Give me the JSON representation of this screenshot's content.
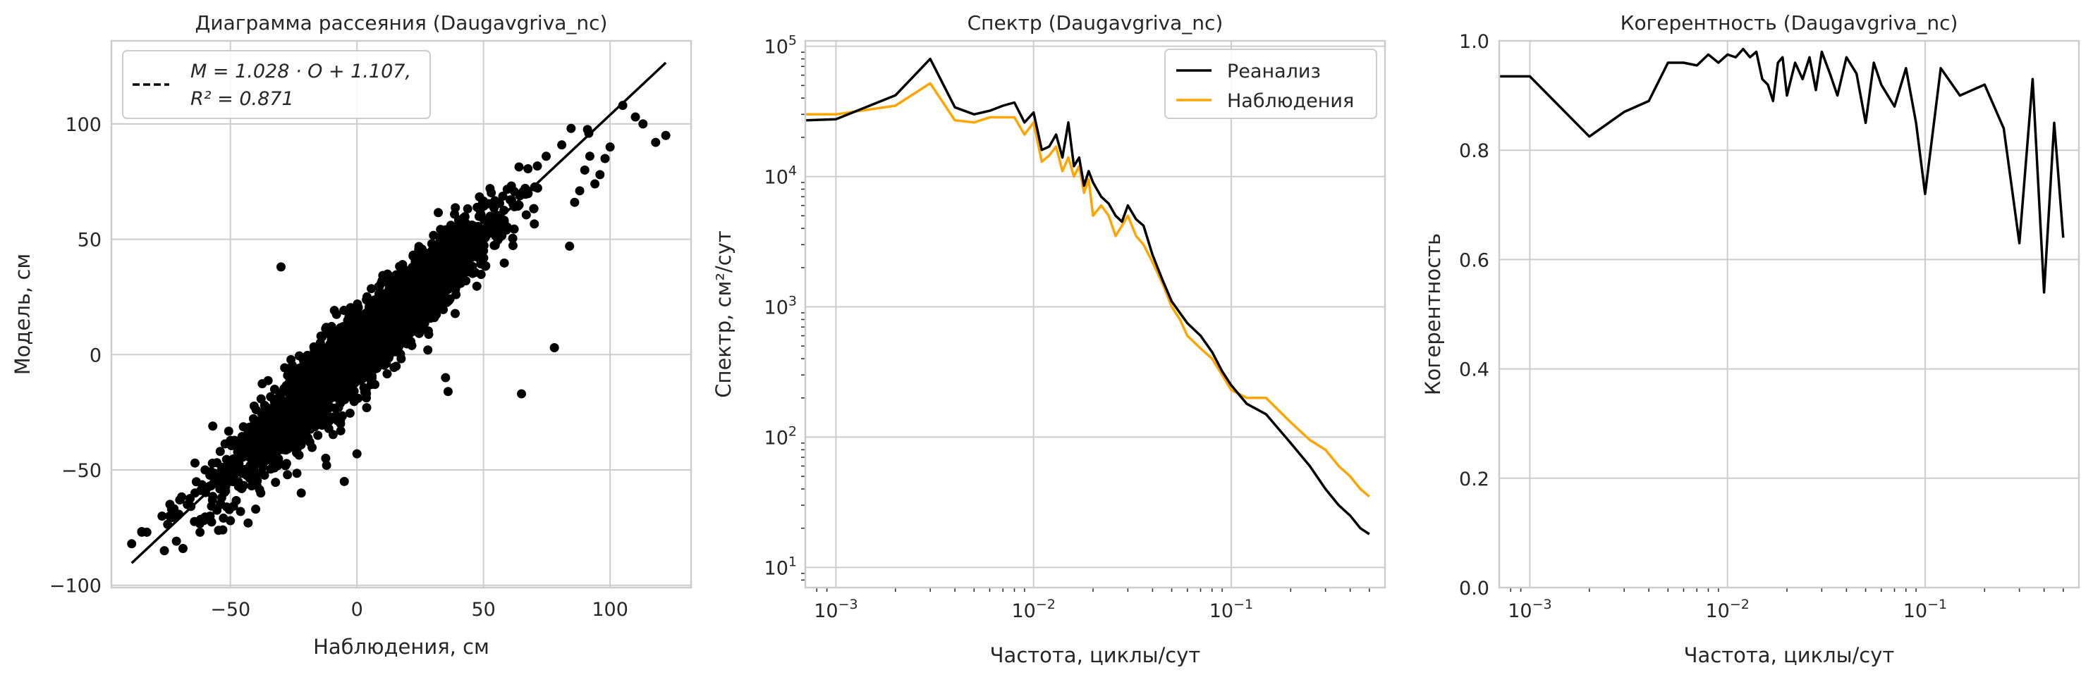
{
  "chart_data": [
    {
      "type": "scatter",
      "title": "Диаграмма рассеяния (Daugavgriva_nc)",
      "xlabel": "Наблюдения, см",
      "ylabel": "Модель, см",
      "xlim": [
        -97,
        132
      ],
      "ylim": [
        -101,
        136
      ],
      "xticks": [
        -50,
        0,
        50,
        100
      ],
      "yticks": [
        -100,
        -50,
        0,
        50,
        100
      ],
      "grid": true,
      "legend_position": "upper-left",
      "legend_lines": [
        "M = 1.028 · O + 1.107,",
        "R² = 0.871"
      ],
      "fit_line": {
        "slope": 1.028,
        "intercept": 1.107,
        "x_range": [
          -89,
          122
        ]
      },
      "scatter_model": {
        "n_points": 3200,
        "slope": 1.028,
        "intercept": 1.107,
        "x_mean": 2,
        "x_std": 25,
        "residual_std": 8.3,
        "x_range": [
          -89,
          122
        ]
      },
      "points": [
        [
          -89,
          -82
        ],
        [
          -85,
          -77
        ],
        [
          -83,
          -77
        ],
        [
          -77,
          -70
        ],
        [
          -74,
          -70
        ],
        [
          -70,
          -63
        ],
        [
          -67,
          -65
        ],
        [
          -64,
          -60
        ],
        [
          -62,
          -77
        ],
        [
          -58,
          -70
        ],
        [
          -53,
          -76
        ],
        [
          -50,
          -72
        ],
        [
          -46,
          -68
        ],
        [
          -43,
          -73
        ],
        [
          -60,
          -50
        ],
        [
          -64,
          -47
        ],
        [
          -40,
          -67
        ],
        [
          -38,
          -60
        ],
        [
          -20,
          -22
        ],
        [
          -35,
          -35
        ],
        [
          -30,
          38
        ],
        [
          -15,
          -30
        ],
        [
          45,
          42
        ],
        [
          50,
          45
        ],
        [
          55,
          54
        ],
        [
          35,
          -10
        ],
        [
          78,
          3
        ],
        [
          28,
          2
        ],
        [
          65,
          -17
        ],
        [
          36,
          -16
        ],
        [
          84,
          47
        ],
        [
          86,
          66
        ],
        [
          88,
          71
        ],
        [
          90,
          80
        ],
        [
          92,
          86
        ],
        [
          94,
          74
        ],
        [
          96,
          78
        ],
        [
          98,
          85
        ],
        [
          100,
          90
        ],
        [
          105,
          108
        ],
        [
          110,
          103
        ],
        [
          113,
          100
        ],
        [
          118,
          92
        ],
        [
          122,
          95
        ],
        [
          -22,
          -60
        ],
        [
          -12,
          -48
        ],
        [
          0,
          -43
        ],
        [
          -5,
          -55
        ]
      ]
    },
    {
      "type": "line",
      "title": "Спектр (Daugavgriva_nc)",
      "xlabel": "Частота, циклы/сут",
      "ylabel": "Спектр, см²/сут",
      "xscale": "log",
      "yscale": "log",
      "xlim": [
        0.0007,
        0.6
      ],
      "ylim": [
        7,
        110000
      ],
      "xticks": [
        {
          "value": 0.001,
          "base": "10",
          "exp": "−3"
        },
        {
          "value": 0.01,
          "base": "10",
          "exp": "−2"
        },
        {
          "value": 0.1,
          "base": "10",
          "exp": "−1"
        }
      ],
      "yticks": [
        {
          "value": 10,
          "base": "10",
          "exp": "1"
        },
        {
          "value": 100,
          "base": "10",
          "exp": "2"
        },
        {
          "value": 1000,
          "base": "10",
          "exp": "3"
        },
        {
          "value": 10000,
          "base": "10",
          "exp": "4"
        },
        {
          "value": 100000,
          "base": "10",
          "exp": "5"
        }
      ],
      "grid": true,
      "legend_position": "upper-right",
      "series": [
        {
          "name": "Реанализ",
          "color": "#000000",
          "x": [
            0.0007,
            0.001,
            0.002,
            0.003,
            0.004,
            0.005,
            0.006,
            0.007,
            0.008,
            0.009,
            0.01,
            0.011,
            0.012,
            0.013,
            0.014,
            0.015,
            0.016,
            0.017,
            0.018,
            0.019,
            0.02,
            0.022,
            0.024,
            0.026,
            0.028,
            0.03,
            0.033,
            0.036,
            0.04,
            0.045,
            0.05,
            0.055,
            0.06,
            0.07,
            0.08,
            0.09,
            0.1,
            0.12,
            0.15,
            0.2,
            0.25,
            0.3,
            0.35,
            0.4,
            0.45,
            0.5
          ],
          "y": [
            27000,
            27500,
            42000,
            80000,
            34000,
            30000,
            32000,
            35000,
            37000,
            26000,
            31000,
            16000,
            17000,
            21000,
            14000,
            26000,
            12000,
            14000,
            8500,
            11000,
            9000,
            7000,
            6200,
            5000,
            4500,
            6000,
            4700,
            4200,
            2500,
            1600,
            1100,
            900,
            750,
            600,
            450,
            320,
            250,
            180,
            150,
            90,
            60,
            40,
            30,
            25,
            20,
            18
          ]
        },
        {
          "name": "Наблюдения",
          "color": "#FFA500",
          "x": [
            0.0007,
            0.001,
            0.002,
            0.003,
            0.004,
            0.005,
            0.006,
            0.007,
            0.008,
            0.009,
            0.01,
            0.011,
            0.012,
            0.013,
            0.014,
            0.015,
            0.016,
            0.017,
            0.018,
            0.019,
            0.02,
            0.022,
            0.024,
            0.026,
            0.028,
            0.03,
            0.033,
            0.036,
            0.04,
            0.045,
            0.05,
            0.055,
            0.06,
            0.07,
            0.08,
            0.09,
            0.1,
            0.12,
            0.15,
            0.2,
            0.25,
            0.3,
            0.35,
            0.4,
            0.45,
            0.5
          ],
          "y": [
            30000,
            30000,
            35000,
            52000,
            27000,
            26000,
            28500,
            28500,
            28500,
            21000,
            26000,
            13000,
            14500,
            17000,
            11000,
            14000,
            10000,
            12000,
            7500,
            9500,
            5000,
            6000,
            5000,
            3500,
            4200,
            5000,
            3500,
            3000,
            2200,
            1500,
            1000,
            800,
            600,
            480,
            400,
            300,
            230,
            200,
            200,
            130,
            95,
            80,
            60,
            50,
            40,
            35
          ]
        }
      ]
    },
    {
      "type": "line",
      "title": "Когерентность (Daugavgriva_nc)",
      "xlabel": "Частота, циклы/сут",
      "ylabel": "Когерентность",
      "xscale": "log",
      "xlim": [
        0.0007,
        0.6
      ],
      "ylim": [
        0.0,
        1.0
      ],
      "xticks": [
        {
          "value": 0.001,
          "base": "10",
          "exp": "−3"
        },
        {
          "value": 0.01,
          "base": "10",
          "exp": "−2"
        },
        {
          "value": 0.1,
          "base": "10",
          "exp": "−1"
        }
      ],
      "yticks": [
        0.0,
        0.2,
        0.4,
        0.6,
        0.8,
        1.0
      ],
      "grid": true,
      "series": [
        {
          "name": "",
          "color": "#000000",
          "x": [
            0.0007,
            0.001,
            0.002,
            0.003,
            0.004,
            0.005,
            0.006,
            0.007,
            0.008,
            0.009,
            0.01,
            0.011,
            0.012,
            0.013,
            0.014,
            0.015,
            0.016,
            0.017,
            0.018,
            0.019,
            0.02,
            0.022,
            0.024,
            0.026,
            0.028,
            0.03,
            0.033,
            0.036,
            0.04,
            0.045,
            0.05,
            0.055,
            0.06,
            0.07,
            0.08,
            0.09,
            0.1,
            0.12,
            0.15,
            0.2,
            0.25,
            0.3,
            0.35,
            0.4,
            0.45,
            0.5
          ],
          "y": [
            0.935,
            0.935,
            0.825,
            0.87,
            0.89,
            0.96,
            0.96,
            0.955,
            0.975,
            0.96,
            0.975,
            0.97,
            0.985,
            0.97,
            0.98,
            0.93,
            0.92,
            0.89,
            0.96,
            0.97,
            0.9,
            0.96,
            0.93,
            0.97,
            0.91,
            0.98,
            0.94,
            0.9,
            0.97,
            0.94,
            0.85,
            0.96,
            0.92,
            0.88,
            0.95,
            0.85,
            0.72,
            0.95,
            0.9,
            0.92,
            0.84,
            0.63,
            0.93,
            0.54,
            0.85,
            0.64
          ]
        }
      ]
    }
  ]
}
